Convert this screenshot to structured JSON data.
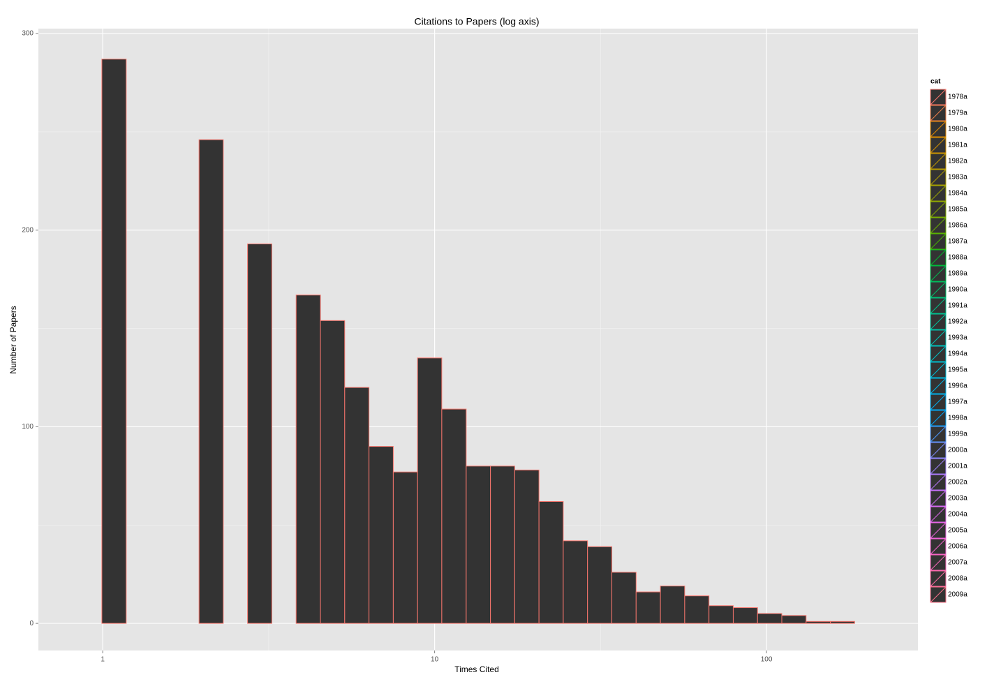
{
  "chart_data": {
    "type": "histogram",
    "title": "Citations to Papers (log axis)",
    "x_label": "Times Cited",
    "y_label": "Number of Papers",
    "x_log": true,
    "bins": [
      0.84,
      0.994,
      1.177,
      1.393,
      1.648,
      1.951,
      2.308,
      2.732,
      3.233,
      3.826,
      4.529,
      5.359,
      6.343,
      7.507,
      8.884,
      10.51,
      12.45,
      14.73,
      17.43,
      20.63,
      24.41,
      28.89,
      34.2,
      40.47,
      47.9,
      56.69,
      67.09,
      79.4,
      93.97,
      111.2,
      131.6,
      155.8,
      184.3,
      218.2
    ],
    "counts": [
      0,
      287,
      0,
      0,
      0,
      246,
      0,
      193,
      0,
      167,
      154,
      120,
      90,
      77,
      135,
      109,
      80,
      80,
      78,
      62,
      42,
      39,
      26,
      16,
      19,
      14,
      9,
      8,
      5,
      4,
      1,
      1,
      0
    ],
    "fill": "#333333",
    "outline": "#F8766D",
    "xlim": [
      0.64,
      285.9
    ],
    "ylim": [
      -13.8,
      302.5
    ],
    "xticks": [
      1,
      10,
      100
    ],
    "yticks": [
      0,
      100,
      200,
      300
    ],
    "x_minor_gridlines": [
      3.162,
      31.62
    ],
    "y_minor_gridlines": [
      50,
      150,
      250
    ],
    "grid": true,
    "legend": {
      "title": "cat",
      "position": "right",
      "entries": [
        {
          "name": "1978a",
          "color": "#F8766D"
        },
        {
          "name": "1979a",
          "color": "#EF7F49"
        },
        {
          "name": "1980a",
          "color": "#E38900"
        },
        {
          "name": "1981a",
          "color": "#D49200"
        },
        {
          "name": "1982a",
          "color": "#C49A00"
        },
        {
          "name": "1983a",
          "color": "#B1A000"
        },
        {
          "name": "1984a",
          "color": "#9DA700"
        },
        {
          "name": "1985a",
          "color": "#86AC00"
        },
        {
          "name": "1986a",
          "color": "#6BB100"
        },
        {
          "name": "1987a",
          "color": "#48B500"
        },
        {
          "name": "1988a",
          "color": "#00B82B"
        },
        {
          "name": "1989a",
          "color": "#00BB4E"
        },
        {
          "name": "1990a",
          "color": "#00BE6A"
        },
        {
          "name": "1991a",
          "color": "#00BF84"
        },
        {
          "name": "1992a",
          "color": "#00C09B"
        },
        {
          "name": "1993a",
          "color": "#00C0B1"
        },
        {
          "name": "1994a",
          "color": "#00BEC4"
        },
        {
          "name": "1995a",
          "color": "#00BBD6"
        },
        {
          "name": "1996a",
          "color": "#00B5E5"
        },
        {
          "name": "1997a",
          "color": "#00AEF1"
        },
        {
          "name": "1998a",
          "color": "#00A5FB"
        },
        {
          "name": "1999a",
          "color": "#4C9AFF"
        },
        {
          "name": "2000a",
          "color": "#7E8EFF"
        },
        {
          "name": "2001a",
          "color": "#A082FF"
        },
        {
          "name": "2002a",
          "color": "#BB77FF"
        },
        {
          "name": "2003a",
          "color": "#D06EF9"
        },
        {
          "name": "2004a",
          "color": "#E068EF"
        },
        {
          "name": "2005a",
          "color": "#EC65E1"
        },
        {
          "name": "2006a",
          "color": "#F564CF"
        },
        {
          "name": "2007a",
          "color": "#FA66BA"
        },
        {
          "name": "2008a",
          "color": "#FC6AA3"
        },
        {
          "name": "2009a",
          "color": "#FB718A"
        }
      ]
    }
  }
}
